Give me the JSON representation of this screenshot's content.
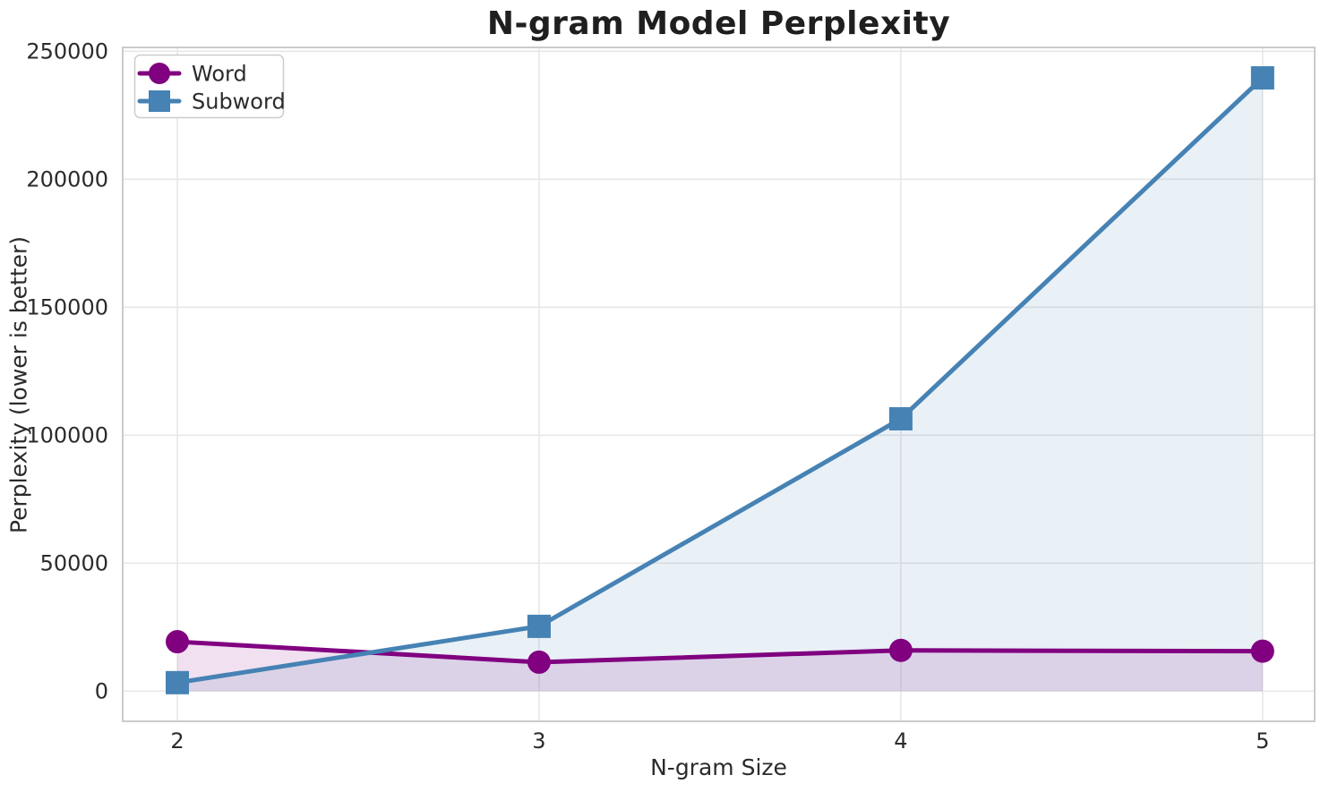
{
  "chart_data": {
    "type": "line",
    "title": "N-gram Model Perplexity",
    "xlabel": "N-gram Size",
    "ylabel": "Perplexity (lower is better)",
    "x": [
      2,
      3,
      4,
      5
    ],
    "series": [
      {
        "name": "Word",
        "color": "#800080",
        "marker": "circle",
        "values": [
          19300,
          11300,
          15900,
          15600
        ]
      },
      {
        "name": "Subword",
        "color": "#4682B4",
        "marker": "square",
        "values": [
          3300,
          25300,
          106400,
          239600
        ]
      }
    ],
    "xticks": {
      "values": [
        2,
        3,
        4,
        5
      ],
      "labels": [
        "2",
        "3",
        "4",
        "5"
      ]
    },
    "yticks": {
      "values": [
        0,
        50000,
        100000,
        150000,
        200000,
        250000
      ],
      "labels": [
        "0",
        "50000",
        "100000",
        "150000",
        "200000",
        "250000"
      ]
    },
    "xlim": [
      1.849,
      5.144
    ],
    "ylim": [
      -11800,
      251500
    ],
    "grid": true,
    "fill_under_lines": true,
    "fill_opacity": 0.12,
    "legend": {
      "position": "upper-left",
      "entries": [
        "Word",
        "Subword"
      ]
    },
    "colors": {
      "background": "#ffffff",
      "grid": "#e7e7e7",
      "spine": "#cbcbcb",
      "text": "#2b2b2b",
      "title": "#1f1f1f",
      "legend_border": "#cccccc"
    }
  }
}
